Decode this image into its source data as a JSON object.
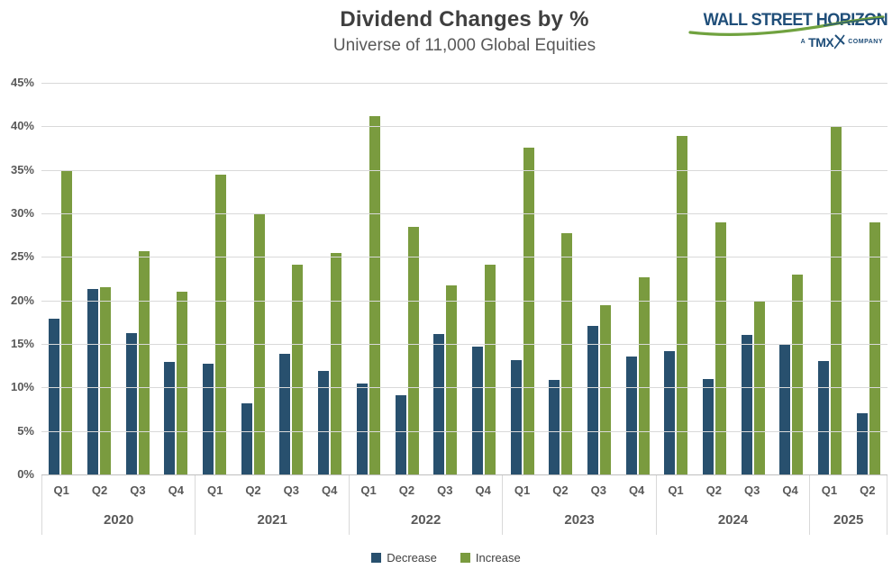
{
  "header": {
    "title": "Dividend Changes by %",
    "subtitle": "Universe of 11,000 Global Equities",
    "logo": {
      "brand": "WALL STREET HORIZON",
      "tagline_prefix": "A",
      "tagline_brand": "TMX",
      "tagline_suffix": "COMPANY"
    }
  },
  "colors": {
    "decrease": "#28506e",
    "increase": "#7a9b3f",
    "gridline": "#d9d9d9",
    "axis_line": "#bfbfbf",
    "axis_text": "#595959",
    "title_text": "#404040",
    "logo_navy": "#1f4e79",
    "logo_green": "#70a23f"
  },
  "chart_data": {
    "type": "bar",
    "title": "Dividend Changes by %",
    "subtitle": "Universe of 11,000 Global Equities",
    "categories": [
      "Q1",
      "Q2",
      "Q3",
      "Q4",
      "Q1",
      "Q2",
      "Q3",
      "Q4",
      "Q1",
      "Q2",
      "Q3",
      "Q4",
      "Q1",
      "Q2",
      "Q3",
      "Q4",
      "Q1",
      "Q2",
      "Q3",
      "Q4",
      "Q1",
      "Q2"
    ],
    "groups": [
      {
        "year": "2020",
        "quarters": [
          "Q1",
          "Q2",
          "Q3",
          "Q4"
        ]
      },
      {
        "year": "2021",
        "quarters": [
          "Q1",
          "Q2",
          "Q3",
          "Q4"
        ]
      },
      {
        "year": "2022",
        "quarters": [
          "Q1",
          "Q2",
          "Q3",
          "Q4"
        ]
      },
      {
        "year": "2023",
        "quarters": [
          "Q1",
          "Q2",
          "Q3",
          "Q4"
        ]
      },
      {
        "year": "2024",
        "quarters": [
          "Q1",
          "Q2",
          "Q3",
          "Q4"
        ]
      },
      {
        "year": "2025",
        "quarters": [
          "Q1",
          "Q2"
        ]
      }
    ],
    "series": [
      {
        "name": "Decrease",
        "color": "#28506e",
        "values": [
          17.9,
          21.3,
          16.2,
          12.9,
          12.7,
          8.2,
          13.9,
          11.9,
          10.5,
          9.1,
          16.1,
          14.7,
          13.1,
          10.9,
          17.1,
          13.6,
          14.2,
          11.0,
          16.0,
          15.0,
          13.0,
          7.0
        ]
      },
      {
        "name": "Increase",
        "color": "#7a9b3f",
        "values": [
          35.0,
          21.5,
          25.7,
          21.0,
          34.5,
          30.0,
          24.1,
          25.4,
          41.2,
          28.5,
          21.7,
          24.1,
          37.6,
          27.7,
          19.4,
          22.7,
          38.9,
          29.0,
          20.0,
          23.0,
          40.0,
          29.0
        ]
      }
    ],
    "ylim": [
      0,
      45
    ],
    "yticks": [
      {
        "value": 0,
        "label": "0%"
      },
      {
        "value": 5,
        "label": "5%"
      },
      {
        "value": 10,
        "label": "10%"
      },
      {
        "value": 15,
        "label": "15%"
      },
      {
        "value": 20,
        "label": "20%"
      },
      {
        "value": 25,
        "label": "25%"
      },
      {
        "value": 30,
        "label": "30%"
      },
      {
        "value": 35,
        "label": "35%"
      },
      {
        "value": 40,
        "label": "40%"
      },
      {
        "value": 45,
        "label": "45%"
      }
    ],
    "grid": true,
    "legend_position": "bottom"
  }
}
